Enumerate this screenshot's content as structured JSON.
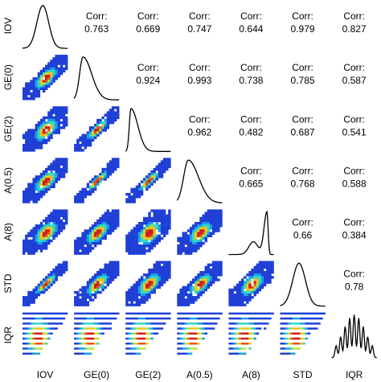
{
  "chart_data": {
    "type": "scatter-matrix",
    "variables": [
      "IOV",
      "GE(0)",
      "GE(2)",
      "A(0.5)",
      "A(8)",
      "STD",
      "IQR"
    ],
    "corr_prefix": "Corr:",
    "correlations": [
      {
        "row": 0,
        "col": 1,
        "value": "0.763"
      },
      {
        "row": 0,
        "col": 2,
        "value": "0.669"
      },
      {
        "row": 0,
        "col": 3,
        "value": "0.747"
      },
      {
        "row": 0,
        "col": 4,
        "value": "0.644"
      },
      {
        "row": 0,
        "col": 5,
        "value": "0.979"
      },
      {
        "row": 0,
        "col": 6,
        "value": "0.827"
      },
      {
        "row": 1,
        "col": 2,
        "value": "0.924"
      },
      {
        "row": 1,
        "col": 3,
        "value": "0.993"
      },
      {
        "row": 1,
        "col": 4,
        "value": "0.738"
      },
      {
        "row": 1,
        "col": 5,
        "value": "0.785"
      },
      {
        "row": 1,
        "col": 6,
        "value": "0.587"
      },
      {
        "row": 2,
        "col": 3,
        "value": "0.962"
      },
      {
        "row": 2,
        "col": 4,
        "value": "0.482"
      },
      {
        "row": 2,
        "col": 5,
        "value": "0.687"
      },
      {
        "row": 2,
        "col": 6,
        "value": "0.541"
      },
      {
        "row": 3,
        "col": 4,
        "value": "0.665"
      },
      {
        "row": 3,
        "col": 5,
        "value": "0.768"
      },
      {
        "row": 3,
        "col": 6,
        "value": "0.588"
      },
      {
        "row": 4,
        "col": 5,
        "value": "0.66"
      },
      {
        "row": 4,
        "col": 6,
        "value": "0.384"
      },
      {
        "row": 5,
        "col": 6,
        "value": "0.78"
      }
    ],
    "diagonal": "density",
    "lower": "2d-density-heatmap",
    "heat_colors": [
      "#1f3fd6",
      "#1aa0e8",
      "#33d9c0",
      "#b8e53a",
      "#f2c21d",
      "#e8531d",
      "#c81e1e"
    ]
  }
}
